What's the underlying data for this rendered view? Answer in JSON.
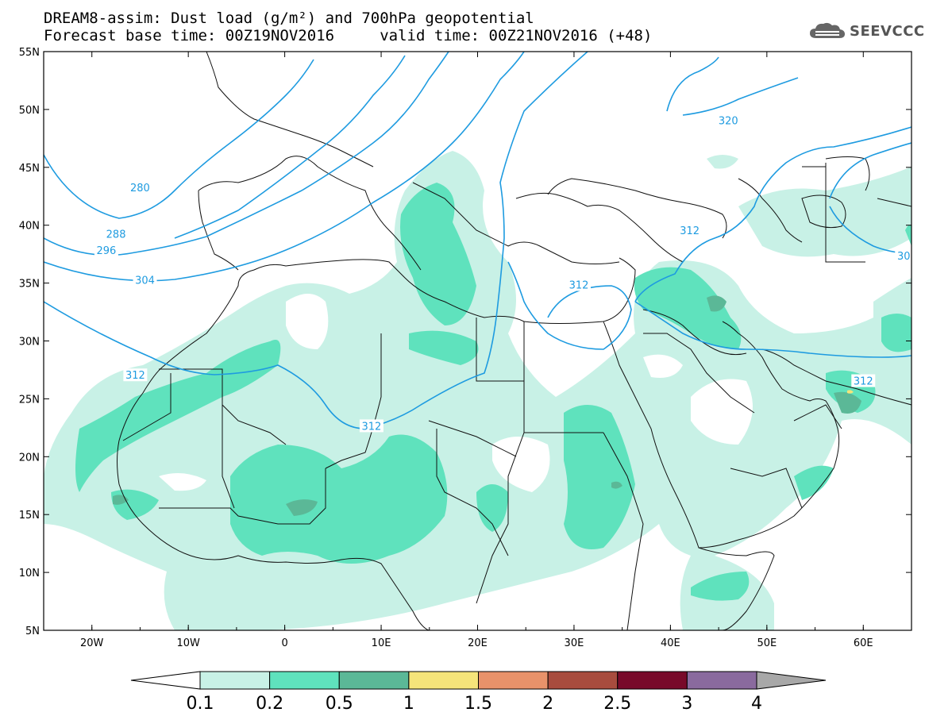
{
  "header": {
    "title_line1": "DREAM8-assim: Dust load (g/m²) and 700hPa geopotential",
    "title_line2": "Forecast base time: 00Z19NOV2016     valid time: 00Z21NOV2016 (+48)",
    "logo_text": "SEEVCCC",
    "logo_icon": "cloud-icon"
  },
  "map": {
    "lat_range": [
      5,
      55
    ],
    "lon_range": [
      -25,
      65
    ],
    "lat_labels": [
      "55N",
      "50N",
      "45N",
      "40N",
      "35N",
      "30N",
      "25N",
      "20N",
      "15N",
      "10N",
      "5N"
    ],
    "lon_labels": [
      "20W",
      "10W",
      "0",
      "10E",
      "20E",
      "30E",
      "40E",
      "50E",
      "60E"
    ],
    "contour_labels": [
      {
        "text": "280",
        "lon": -15,
        "lat": 43.2
      },
      {
        "text": "288",
        "lon": -17.5,
        "lat": 39.2
      },
      {
        "text": "296",
        "lon": -18.5,
        "lat": 37.8
      },
      {
        "text": "304",
        "lon": -14.5,
        "lat": 35.2
      },
      {
        "text": "312",
        "lon": -15.5,
        "lat": 27
      },
      {
        "text": "312",
        "lon": 9,
        "lat": 22.6
      },
      {
        "text": "312",
        "lon": 30.5,
        "lat": 34.8
      },
      {
        "text": "312",
        "lon": 42,
        "lat": 39.5
      },
      {
        "text": "312",
        "lon": 60,
        "lat": 26.5
      },
      {
        "text": "320",
        "lon": 46,
        "lat": 49
      },
      {
        "text": "30",
        "lon": 64.2,
        "lat": 37.3
      }
    ],
    "contour_color": "#1e9be0"
  },
  "legend": {
    "labels": [
      "0.1",
      "0.2",
      "0.5",
      "1",
      "1.5",
      "2",
      "2.5",
      "3",
      "4"
    ],
    "colors": [
      "#c8f1e6",
      "#5fe2bd",
      "#5bb897",
      "#f5e47a",
      "#e8926a",
      "#a84c3e",
      "#780a2a",
      "#8a6a9e",
      "#a8a8a8"
    ],
    "under_color": "#ffffff"
  }
}
